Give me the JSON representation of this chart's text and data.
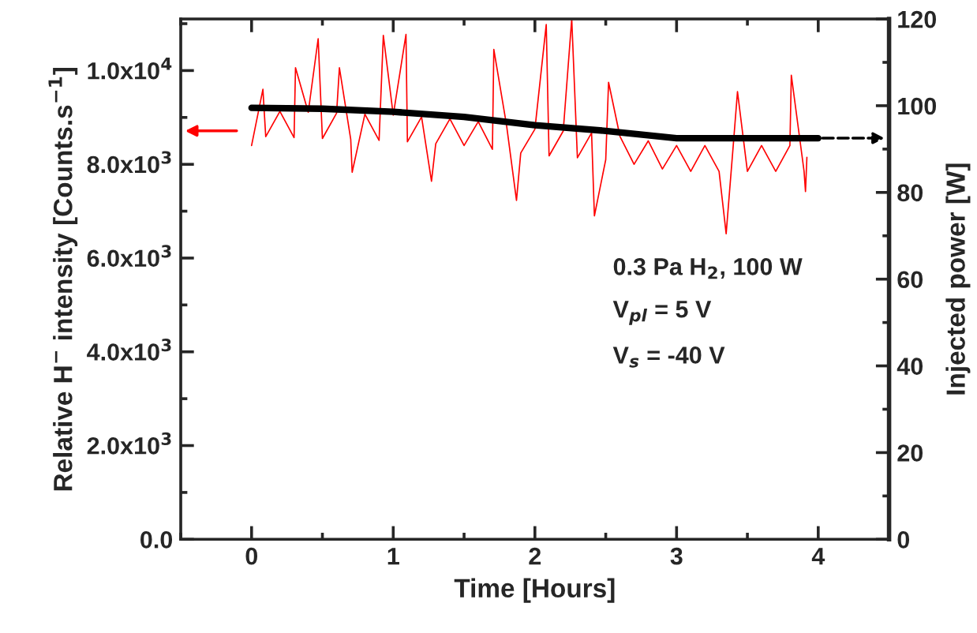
{
  "chart_data": {
    "type": "line",
    "xlabel": "Time [Hours]",
    "ylabel": "Relative H$^{−}$ intensity [Counts.s$^{−1}$]",
    "y2label": "Injected power [W]",
    "xlim": [
      -0.5,
      4.5
    ],
    "xticks": [
      0,
      1,
      2,
      3,
      4
    ],
    "ylim": [
      0,
      11100
    ],
    "yticks": [
      {
        "value": 0,
        "label": "0.0"
      },
      {
        "value": 2000,
        "label": "2.0x10$^{3}$"
      },
      {
        "value": 4000,
        "label": "4.0x10$^{3}$"
      },
      {
        "value": 6000,
        "label": "6.0x10$^{3}$"
      },
      {
        "value": 8000,
        "label": "8.0x10$^{3}$"
      },
      {
        "value": 10000,
        "label": "1.0x10$^{4}$"
      }
    ],
    "y2lim": [
      0,
      120
    ],
    "y2ticks": [
      0,
      20,
      40,
      60,
      80,
      100,
      120
    ],
    "grid": false,
    "legend": false,
    "marker": "none",
    "line_style": "solid",
    "annotations": [
      "0.3 Pa H$_{2}$, 100 W",
      "V$_{pl}$ = 5 V",
      "V$_{s}$ = -40 V"
    ],
    "series": [
      {
        "color": "#ff0000",
        "x": [
          0,
          0.08,
          0.1,
          0.2,
          0.3,
          0.31,
          0.4,
          0.47,
          0.5,
          0.6,
          0.62,
          0.7,
          0.71,
          0.8,
          0.9,
          0.93,
          1.0,
          1.09,
          1.1,
          1.2,
          1.27,
          1.3,
          1.4,
          1.5,
          1.6,
          1.7,
          1.71,
          1.8,
          1.87,
          1.9,
          2.0,
          2.08,
          2.1,
          2.2,
          2.26,
          2.3,
          2.4,
          2.42,
          2.5,
          2.52,
          2.6,
          2.7,
          2.8,
          2.9,
          3.0,
          3.1,
          3.2,
          3.3,
          3.35,
          3.4,
          3.43,
          3.5,
          3.6,
          3.7,
          3.8,
          3.81,
          3.9,
          3.91,
          3.92
        ],
        "values": [
          8400,
          9600,
          8590,
          9130,
          8570,
          10060,
          9110,
          10680,
          8550,
          9090,
          10060,
          8530,
          7830,
          9070,
          8510,
          10750,
          9050,
          10770,
          8480,
          9010,
          7640,
          8440,
          8970,
          8400,
          8910,
          8320,
          10450,
          8830,
          7230,
          8240,
          8750,
          10980,
          8180,
          8710,
          11100,
          8140,
          8670,
          6900,
          8100,
          9750,
          8600,
          8000,
          8500,
          7900,
          8400,
          7850,
          8400,
          7850,
          6520,
          8400,
          9550,
          7850,
          8400,
          7850,
          8400,
          9900,
          7850,
          7420,
          8150
        ]
      },
      {
        "color": "#000000",
        "axis": "y2",
        "x": [
          0,
          0.5,
          1,
          1.5,
          2,
          2.5,
          3,
          3.5,
          4
        ],
        "values": [
          99.5,
          99.3,
          98.6,
          97.4,
          95.5,
          94.2,
          92.5,
          92.5,
          92.5
        ]
      }
    ]
  }
}
